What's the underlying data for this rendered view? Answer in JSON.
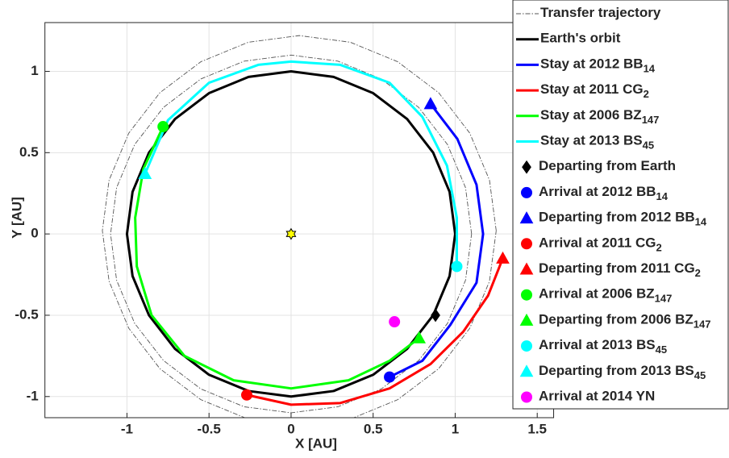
{
  "chart_data": {
    "type": "line",
    "x_label": "X  [AU]",
    "y_label": "Y  [AU]",
    "xlim": [
      -1.5,
      1.6
    ],
    "ylim": [
      -1.13,
      1.3
    ],
    "xticks": [
      -1,
      -0.5,
      0,
      0.5,
      1,
      1.5
    ],
    "yticks": [
      -1,
      -0.5,
      0,
      0.5,
      1
    ],
    "grid": true,
    "legend": "upper right",
    "series": [
      {
        "name": "Transfer trajectory",
        "color": "#555555",
        "style": "dashdot",
        "x": [
          1.1,
          1.063,
          0.953,
          0.778,
          0.55,
          0.285,
          0,
          -0.285,
          -0.55,
          -0.778,
          -0.953,
          -1.063,
          -1.1,
          -1.063,
          -0.953,
          -0.778,
          -0.55,
          -0.285,
          0,
          0.285,
          0.55,
          0.778,
          0.953,
          1.063,
          1.1,
          null,
          1.25,
          1.209,
          1.089,
          0.899,
          0.65,
          0.361,
          0.05,
          -0.261,
          -0.55,
          -0.799,
          -0.989,
          -1.109,
          -1.15,
          -1.109,
          -0.989,
          -0.799,
          -0.55,
          -0.261,
          0.05,
          0.361,
          0.65,
          0.899,
          1.089,
          1.209,
          1.25
        ],
        "y": [
          0,
          0.285,
          0.55,
          0.778,
          0.953,
          1.063,
          1.1,
          1.063,
          0.953,
          0.778,
          0.55,
          0.285,
          0,
          -0.285,
          -0.55,
          -0.778,
          -0.953,
          -1.063,
          -1.1,
          -1.063,
          -0.953,
          -0.778,
          -0.55,
          -0.285,
          0,
          null,
          0.02,
          0.331,
          0.62,
          0.869,
          1.059,
          1.179,
          1.22,
          1.179,
          1.059,
          0.869,
          0.62,
          0.331,
          0.02,
          -0.291,
          -0.58,
          -0.829,
          -1.019,
          -1.139,
          -1.18,
          -1.139,
          -1.019,
          -0.829,
          -0.58,
          -0.291,
          0.02
        ]
      },
      {
        "name": "Earth's orbit",
        "color": "#000000",
        "style": "solid",
        "x": [
          1,
          0.966,
          0.866,
          0.707,
          0.5,
          0.259,
          0,
          -0.259,
          -0.5,
          -0.707,
          -0.866,
          -0.966,
          -1,
          -0.966,
          -0.866,
          -0.707,
          -0.5,
          -0.259,
          0,
          0.259,
          0.5,
          0.707,
          0.866,
          0.966,
          1
        ],
        "y": [
          0,
          0.259,
          0.5,
          0.707,
          0.866,
          0.966,
          1,
          0.966,
          0.866,
          0.707,
          0.5,
          0.259,
          0,
          -0.259,
          -0.5,
          -0.707,
          -0.866,
          -0.966,
          -1,
          -0.966,
          -0.866,
          -0.707,
          -0.5,
          -0.259,
          0
        ]
      },
      {
        "name": "Stay at 2012 BB",
        "name_sub": "14",
        "color": "#0000ff",
        "style": "solid",
        "x": [
          0.85,
          1.013,
          1.13,
          1.17,
          1.13,
          0.97,
          0.8,
          0.6
        ],
        "y": [
          0.8,
          0.585,
          0.303,
          0,
          -0.3,
          -0.56,
          -0.78,
          -0.88
        ]
      },
      {
        "name": "Stay at 2011 CG",
        "name_sub": "2",
        "color": "#ff0000",
        "style": "solid",
        "x": [
          -0.27,
          0,
          0.3,
          0.6,
          0.85,
          1.05,
          1.2,
          1.29
        ],
        "y": [
          -0.99,
          -1.05,
          -1.04,
          -0.95,
          -0.8,
          -0.6,
          -0.38,
          -0.15
        ]
      },
      {
        "name": "Stay at 2006 BZ",
        "name_sub": "147",
        "color": "#00ff00",
        "style": "solid",
        "x": [
          -0.78,
          -0.9,
          -0.95,
          -0.94,
          -0.85,
          -0.65,
          -0.35,
          0,
          0.35,
          0.6,
          0.78
        ],
        "y": [
          0.66,
          0.4,
          0.1,
          -0.2,
          -0.5,
          -0.75,
          -0.9,
          -0.95,
          -0.9,
          -0.78,
          -0.64
        ]
      },
      {
        "name": "Stay at 2013 BS",
        "name_sub": "45",
        "color": "#00ffff",
        "style": "solid",
        "x": [
          -0.89,
          -0.75,
          -0.5,
          -0.2,
          0,
          0.3,
          0.6,
          0.8,
          0.95,
          1.01,
          1.01
        ],
        "y": [
          0.37,
          0.7,
          0.93,
          1.04,
          1.06,
          1.04,
          0.93,
          0.72,
          0.42,
          0.1,
          -0.2
        ]
      },
      {
        "color": "#ffff00",
        "style": "marker",
        "marker": "hexagram",
        "x": [
          0
        ],
        "y": [
          0
        ]
      },
      {
        "name": "Departing from Earth",
        "color": "#000000",
        "style": "marker",
        "marker": "diamond",
        "x": [
          0.88
        ],
        "y": [
          -0.5
        ]
      },
      {
        "name": "Arrival at 2012 BB",
        "name_sub": "14",
        "color": "#0000ff",
        "style": "marker",
        "marker": "circle",
        "x": [
          0.6
        ],
        "y": [
          -0.88
        ]
      },
      {
        "name": "Departing from 2012 BB",
        "name_sub": "14",
        "color": "#0000ff",
        "style": "marker",
        "marker": "triangle",
        "x": [
          0.85
        ],
        "y": [
          0.8
        ]
      },
      {
        "name": "Arrival at 2011 CG",
        "name_sub": "2",
        "color": "#ff0000",
        "style": "marker",
        "marker": "circle",
        "x": [
          -0.27
        ],
        "y": [
          -0.99
        ]
      },
      {
        "name": "Departing from 2011 CG",
        "name_sub": "2",
        "color": "#ff0000",
        "style": "marker",
        "marker": "triangle",
        "x": [
          1.29
        ],
        "y": [
          -0.15
        ]
      },
      {
        "name": "Arrival at 2006 BZ",
        "name_sub": "147",
        "color": "#00ff00",
        "style": "marker",
        "marker": "circle",
        "x": [
          -0.78
        ],
        "y": [
          0.66
        ]
      },
      {
        "name": "Departing from 2006 BZ",
        "name_sub": "147",
        "color": "#00ff00",
        "style": "marker",
        "marker": "triangle",
        "x": [
          0.78
        ],
        "y": [
          -0.64
        ]
      },
      {
        "name": "Arrival at 2013 BS",
        "name_sub": "45",
        "color": "#00ffff",
        "style": "marker",
        "marker": "circle",
        "x": [
          1.01
        ],
        "y": [
          -0.2
        ]
      },
      {
        "name": "Departing from 2013 BS",
        "name_sub": "45",
        "color": "#00ffff",
        "style": "marker",
        "marker": "triangle",
        "x": [
          -0.89
        ],
        "y": [
          0.37
        ]
      },
      {
        "name": "Arrival at 2014 YN",
        "color": "#ff00ff",
        "style": "marker",
        "marker": "circle",
        "x": [
          0.63
        ],
        "y": [
          -0.54
        ]
      }
    ]
  }
}
